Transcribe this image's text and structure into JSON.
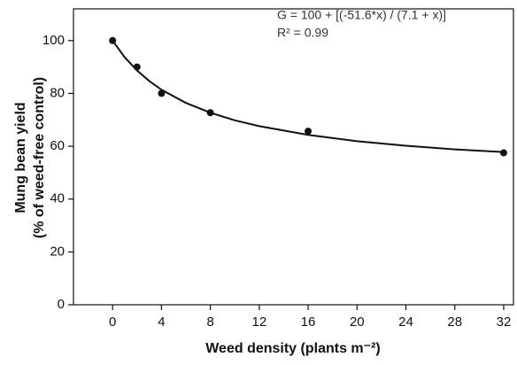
{
  "chart_data": {
    "type": "scatter",
    "x_label": "Weed density (plants m⁻²)",
    "y_label": [
      "Mung bean yield",
      "(% of weed-free control)"
    ],
    "annotations": [
      "G = 100 + [(-51.6*x) / (7.1 + x)]",
      "R² = 0.99"
    ],
    "x": [
      0,
      2,
      4,
      8,
      16,
      32
    ],
    "values": [
      100,
      90,
      80,
      72.7,
      65.7,
      57.5
    ],
    "color": "#111111",
    "fit": {
      "x": [
        0,
        1,
        2,
        3,
        4,
        6,
        8,
        10,
        12,
        16,
        20,
        24,
        28,
        32
      ],
      "values": [
        100,
        93.6,
        88.7,
        84.7,
        81.4,
        76.4,
        72.7,
        69.8,
        67.6,
        64.3,
        61.9,
        60.2,
        58.8,
        57.8
      ]
    },
    "xlim": [
      -3.2,
      32.8
    ],
    "xticks": [
      0,
      4,
      8,
      12,
      16,
      20,
      24,
      28,
      32
    ],
    "ylim": [
      0,
      112
    ],
    "yticks": [
      0,
      20,
      40,
      60,
      80,
      100
    ],
    "grid": false
  }
}
